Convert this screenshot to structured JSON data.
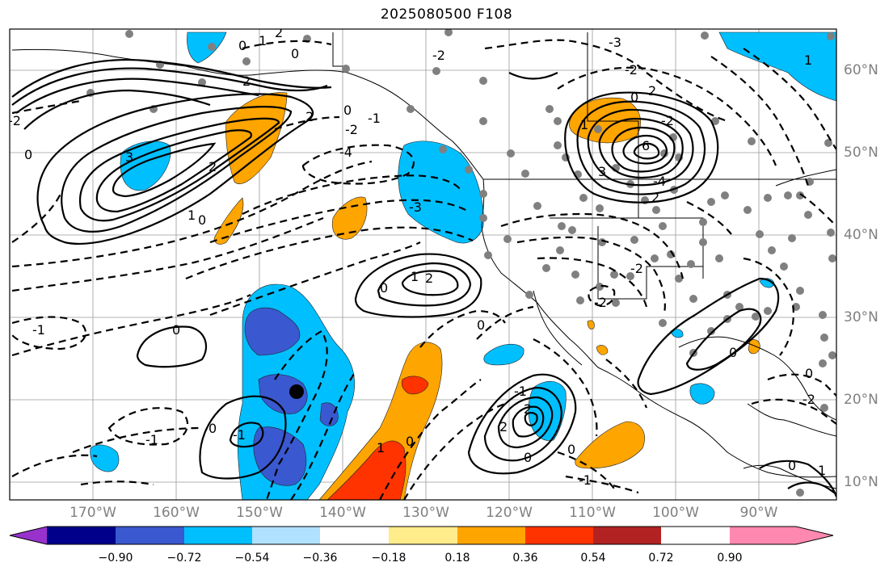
{
  "title": "2025080500 F108",
  "lat_labels": [
    "60°N",
    "50°N",
    "40°N",
    "30°N",
    "20°N",
    "10°N"
  ],
  "lon_labels": [
    "170°W",
    "160°W",
    "150°W",
    "140°W",
    "130°W",
    "120°W",
    "110°W",
    "100°W",
    "90°W"
  ],
  "colorbar": {
    "ticks": [
      "−0.90",
      "−0.72",
      "−0.54",
      "−0.36",
      "−0.18",
      "0.18",
      "0.36",
      "0.54",
      "0.72",
      "0.90"
    ],
    "colors": [
      "#9932cc",
      "#00008b",
      "#3a58cf",
      "#00bfff",
      "#b0e2ff",
      "#ffffff",
      "#ffec8b",
      "#ffa500",
      "#ff3300",
      "#b22222",
      "#ff88b0"
    ]
  },
  "contour_labels": [
    "0",
    "1",
    "-1",
    "-2",
    "-3",
    "2",
    "3",
    "4",
    "-4",
    "6"
  ],
  "fill_colors": {
    "neg_strong": "#3a58cf",
    "neg": "#00bfff",
    "pos": "#ffa500",
    "pos_strong": "#ff3300"
  }
}
